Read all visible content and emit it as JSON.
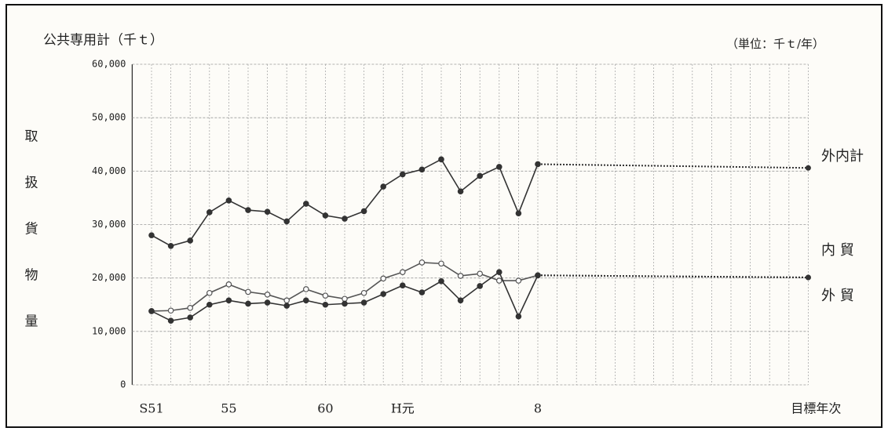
{
  "chart_data": {
    "type": "line",
    "title": "公共専用計（千ｔ）",
    "unit_note": "（単位：千ｔ/年）",
    "y_label": "取扱貨物量",
    "categories": [
      "S51",
      null,
      null,
      null,
      "55",
      null,
      null,
      null,
      null,
      "60",
      null,
      null,
      null,
      "H元",
      null,
      null,
      null,
      null,
      null,
      null,
      "8"
    ],
    "target_category": "目標年次",
    "ylim": [
      0,
      60000
    ],
    "yticks": [
      0,
      {
        "value": 10000,
        "label": "10,000"
      },
      {
        "value": 20000,
        "label": "20,000"
      },
      {
        "value": 30000,
        "label": "30,000"
      },
      {
        "value": 40000,
        "label": "40,000"
      },
      {
        "value": 50000,
        "label": "50,000"
      },
      {
        "value": 60000,
        "label": "60,000"
      }
    ],
    "grid": true,
    "series": [
      {
        "name": "外内計",
        "color": "#333333",
        "marker": "filled",
        "values": [
          28000,
          26000,
          27000,
          32300,
          34500,
          32700,
          32400,
          30600,
          33900,
          31700,
          31100,
          32500,
          37100,
          39400,
          40300,
          42200,
          36200,
          39100,
          40800,
          32100,
          41300
        ],
        "target": 40600
      },
      {
        "name": "内 貿",
        "color": "#555555",
        "marker": "open",
        "values": [
          13800,
          13900,
          14400,
          17200,
          18800,
          17400,
          16900,
          15800,
          17900,
          16700,
          16100,
          17200,
          19900,
          21100,
          22900,
          22700,
          20400,
          20800,
          19500,
          19500,
          20500
        ],
        "target": 20100
      },
      {
        "name": "外 貿",
        "color": "#333333",
        "marker": "filled",
        "values": [
          13800,
          12000,
          12600,
          15000,
          15800,
          15200,
          15400,
          14800,
          15800,
          15000,
          15200,
          15400,
          17000,
          18600,
          17300,
          19400,
          15800,
          18500,
          21100,
          12800,
          20500
        ],
        "target": 20100
      }
    ]
  }
}
